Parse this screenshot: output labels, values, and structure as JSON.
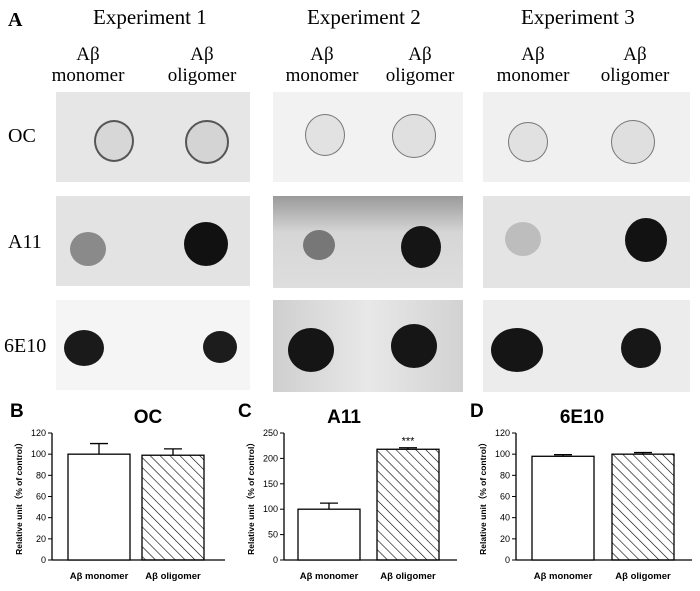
{
  "figure": {
    "panel_a_letter": "A",
    "experiments": [
      "Experiment 1",
      "Experiment 2",
      "Experiment 3"
    ],
    "conditions": [
      {
        "line1": "Aβ",
        "line2": "monomer"
      },
      {
        "line1": "Aβ",
        "line2": "oligomer"
      }
    ],
    "rows": [
      "OC",
      "A11",
      "6E10"
    ]
  },
  "chart_data": [
    {
      "panel": "B",
      "type": "bar",
      "title": "OC",
      "ylabel": "Relative unit（% of control）",
      "categories": [
        "Aβ monomer",
        "Aβ oligomer"
      ],
      "values": [
        100,
        99
      ],
      "errors": [
        10,
        6
      ],
      "ylim": [
        0,
        120
      ],
      "yticks": [
        0,
        20,
        40,
        60,
        80,
        100,
        120
      ],
      "fills": [
        "white",
        "hatched"
      ],
      "annotation": ""
    },
    {
      "panel": "C",
      "type": "bar",
      "title": "A11",
      "ylabel": "Relative unit（% of control）",
      "categories": [
        "Aβ monomer",
        "Aβ oligomer"
      ],
      "values": [
        100,
        218
      ],
      "errors": [
        12,
        3
      ],
      "ylim": [
        0,
        250
      ],
      "yticks": [
        0,
        50,
        100,
        150,
        200,
        250
      ],
      "fills": [
        "white",
        "hatched"
      ],
      "annotation": "***"
    },
    {
      "panel": "D",
      "type": "bar",
      "title": "6E10",
      "ylabel": "Relative unit（% of control）",
      "categories": [
        "Aβ monomer",
        "Aβ oligomer"
      ],
      "values": [
        98,
        100
      ],
      "errors": [
        1.5,
        1.5
      ],
      "ylim": [
        0,
        120
      ],
      "yticks": [
        0,
        20,
        40,
        60,
        80,
        100,
        120
      ],
      "fills": [
        "white",
        "hatched"
      ],
      "annotation": ""
    }
  ]
}
